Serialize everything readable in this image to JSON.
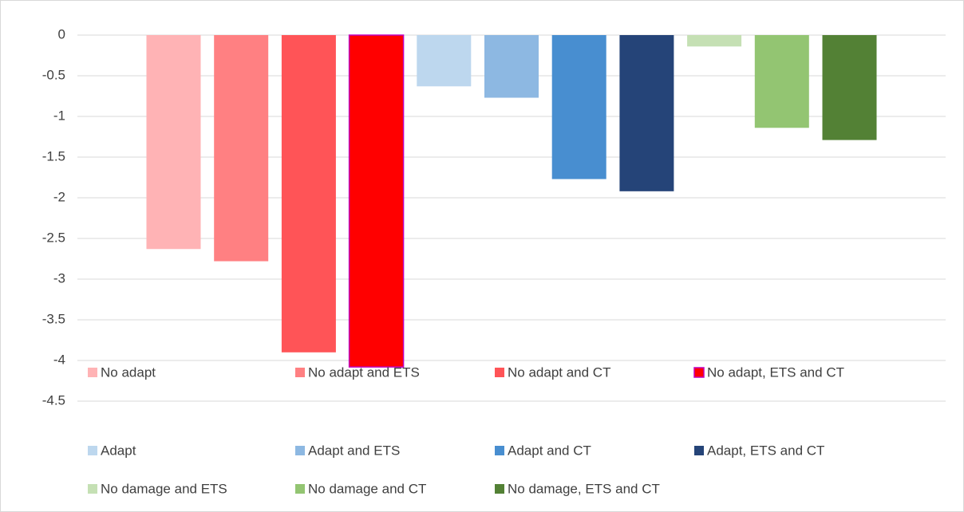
{
  "chart_data": {
    "type": "bar",
    "categories": [
      null
    ],
    "series": [
      {
        "name": "No adapt",
        "color": "#ffb3b5",
        "values": [
          -2.63
        ]
      },
      {
        "name": "No adapt and ETS",
        "color": "#ff8082",
        "values": [
          -2.78
        ]
      },
      {
        "name": "No adapt and CT",
        "color": "#ff5457",
        "values": [
          -3.9
        ]
      },
      {
        "name": "No adapt, ETS and CT",
        "color": "#ff0000",
        "edgecolor": "#c000c0",
        "values": [
          -4.08
        ]
      },
      {
        "name": "Adapt",
        "color": "#bdd7ee",
        "values": [
          -0.63
        ]
      },
      {
        "name": "Adapt and ETS",
        "color": "#8db8e2",
        "values": [
          -0.77
        ]
      },
      {
        "name": "Adapt and CT",
        "color": "#488ed0",
        "values": [
          -1.77
        ]
      },
      {
        "name": "Adapt, ETS and CT",
        "color": "#254478",
        "values": [
          -1.92
        ]
      },
      {
        "name": "No damage and ETS",
        "color": "#c5e0b4",
        "values": [
          -0.14
        ]
      },
      {
        "name": "No damage and CT",
        "color": "#93c572",
        "values": [
          -1.14
        ]
      },
      {
        "name": "No damage, ETS and CT",
        "color": "#538135",
        "values": [
          -1.29
        ]
      }
    ],
    "ylim": [
      -4.5,
      0
    ],
    "yticks": [
      0,
      -0.5,
      -1,
      -1.5,
      -2,
      -2.5,
      -3,
      -3.5,
      -4,
      -4.5
    ],
    "grid": true,
    "legend": "bottom"
  }
}
